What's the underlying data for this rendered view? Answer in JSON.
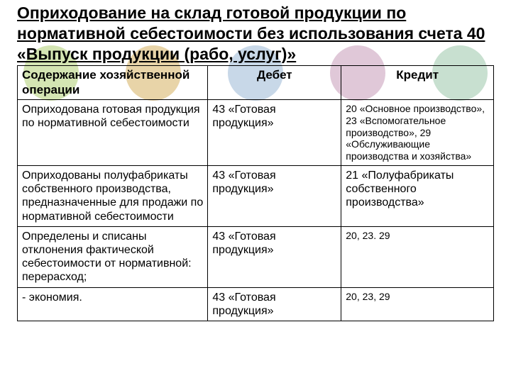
{
  "title": "Оприходование на склад готовой продукции по нормативной себестоимости без использования счета 40 «Выпуск продукции (рабо, услуг)»",
  "circle_colors": [
    "#d4e5b3",
    "#e8d4a8",
    "#c8d8e8",
    "#e0c8d8",
    "#c8e0d0"
  ],
  "table": {
    "headers": [
      "Содержание хозяйственной операции",
      "Дебет",
      "Кредит"
    ],
    "rows": [
      {
        "op": "Оприходована готовая продукция по нормативной себестоимости",
        "debit": "43 «Готовая продукция»",
        "credit": "20 «Основное производство», 23 «Вспомогательное производство», 29 «Обслуживающие производства и хозяйства»",
        "credit_small": true
      },
      {
        "op": "Оприходованы полуфабрикаты собственного производства, предназначенные для продажи по нормативной себестоимости",
        "debit": "43 «Готовая продукция»",
        "credit": "21 «Полуфабрикаты собственного производства»",
        "credit_small": false
      },
      {
        "op": "Определены и списаны отклонения фактической себестоимости от нормативной:\n перерасход;",
        "debit": "43 «Готовая продукция»",
        "credit": "20, 23. 29",
        "credit_small": true
      },
      {
        "op": " - экономия.",
        "debit": "43 «Готовая продукция»",
        "credit": "20, 23, 29",
        "credit_small": true
      }
    ]
  }
}
